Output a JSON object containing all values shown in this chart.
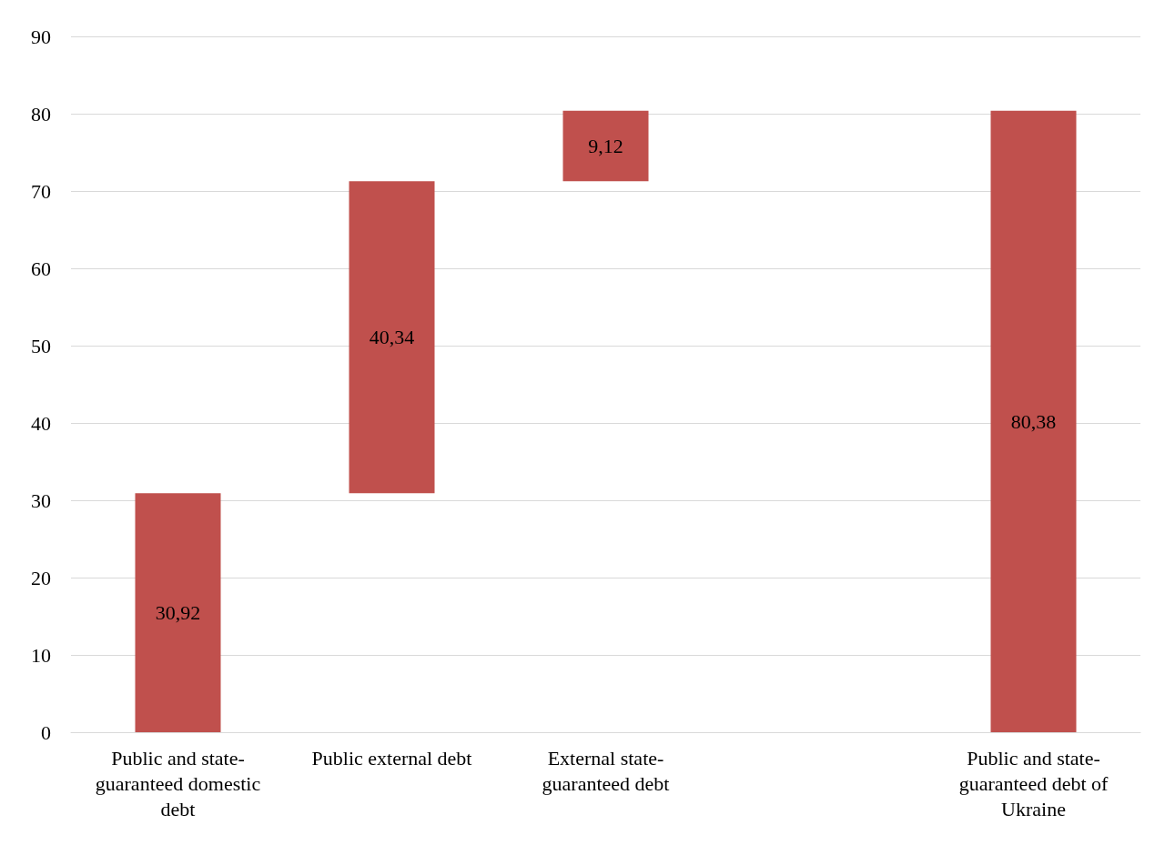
{
  "chart_data": {
    "type": "bar",
    "categories": [
      "Public and state-guaranteed domestic debt",
      "Public external debt",
      "External state-guaranteed debt",
      null,
      "Public and state-guaranteed debt of Ukraine"
    ],
    "values": [
      30.92,
      40.34,
      9.12,
      null,
      80.38
    ],
    "base": [
      0,
      30.92,
      71.26,
      null,
      0
    ],
    "value_labels": [
      "30,92",
      "40,34",
      "9,12",
      null,
      "80,38"
    ],
    "color": "#c0504d",
    "ylim": [
      0,
      90
    ],
    "yticks": [
      0,
      10,
      20,
      30,
      40,
      50,
      60,
      70,
      80,
      90
    ],
    "grid": "y"
  }
}
